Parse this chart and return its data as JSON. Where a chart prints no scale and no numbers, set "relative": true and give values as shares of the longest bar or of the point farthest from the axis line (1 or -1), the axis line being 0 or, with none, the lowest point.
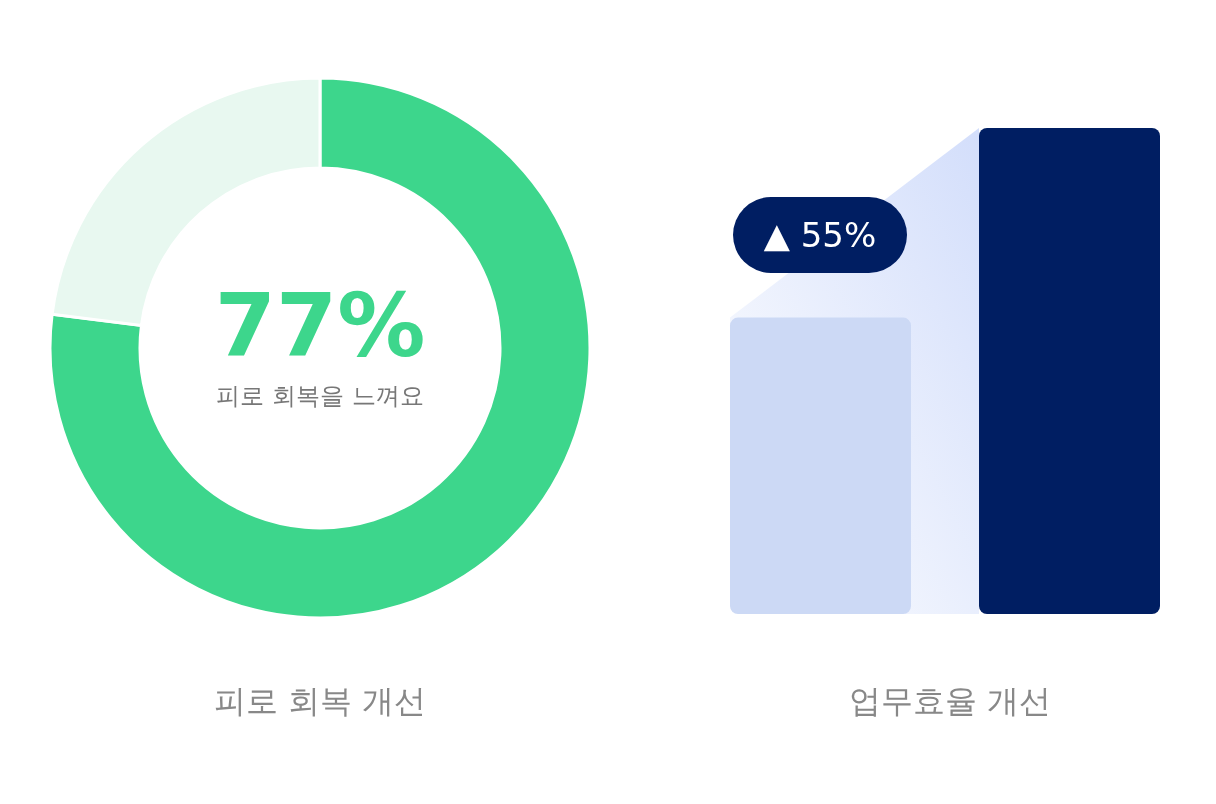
{
  "chart_data": [
    {
      "type": "donut",
      "title": "피로 회복 개선",
      "categories": [
        null,
        null
      ],
      "values": [
        77,
        23
      ],
      "colors": [
        "#3dd68c",
        "#e8f8f0"
      ],
      "annotations": [
        "77%",
        "피로 회복을 느껴요"
      ]
    },
    {
      "type": "bar",
      "title": "업무효율 개선",
      "relative": true,
      "categories": [
        null,
        null
      ],
      "values": [
        0.61,
        1
      ],
      "colors": [
        "#ccd9f5",
        "#001e62"
      ],
      "annotations": [
        "▲ 55%"
      ]
    }
  ]
}
